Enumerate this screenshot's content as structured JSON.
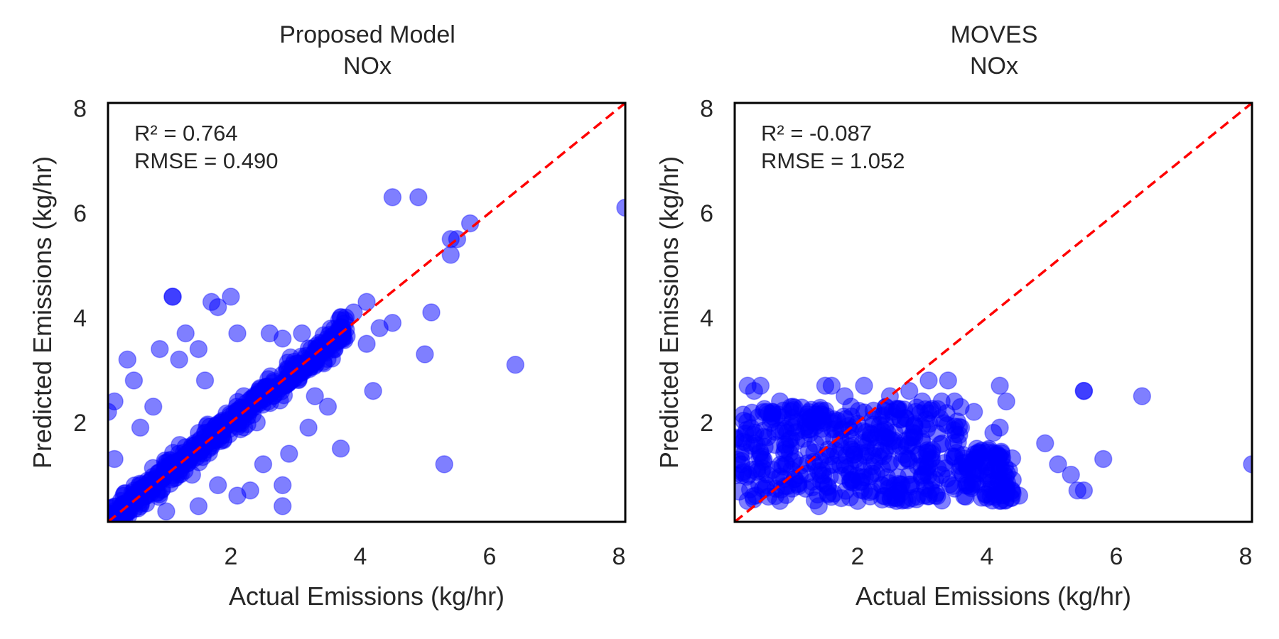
{
  "colors": {
    "points": "#0000ff",
    "diagonal": "#ff0000",
    "frame": "#000000"
  },
  "chart_data": [
    {
      "type": "scatter",
      "title_line1": "Proposed Model",
      "title_line2": "NOx",
      "xlabel": "Actual Emissions (kg/hr)",
      "ylabel": "Predicted Emissions (kg/hr)",
      "xlim": [
        0.1,
        8.1
      ],
      "ylim": [
        0.1,
        8.1
      ],
      "xticks": [
        2,
        4,
        6,
        8
      ],
      "yticks": [
        2,
        4,
        6,
        8
      ],
      "grid": false,
      "reference_line": "y = x",
      "annotation_r2": "R² = 0.764",
      "annotation_rmse": "RMSE = 0.490",
      "r2": 0.764,
      "rmse": 0.49,
      "cluster": {
        "x_range": [
          0.1,
          3.8
        ],
        "description": "dense band along y = x"
      },
      "points": [
        [
          0.2,
          2.4
        ],
        [
          0.1,
          2.2
        ],
        [
          0.4,
          3.2
        ],
        [
          0.5,
          2.8
        ],
        [
          0.9,
          3.4
        ],
        [
          1.1,
          4.4
        ],
        [
          1.1,
          4.4
        ],
        [
          1.3,
          3.7
        ],
        [
          1.5,
          3.4
        ],
        [
          1.6,
          2.8
        ],
        [
          1.7,
          4.3
        ],
        [
          1.8,
          4.2
        ],
        [
          2.0,
          4.4
        ],
        [
          2.1,
          3.7
        ],
        [
          2.6,
          3.7
        ],
        [
          2.8,
          3.6
        ],
        [
          3.1,
          3.7
        ],
        [
          3.4,
          3.5
        ],
        [
          3.7,
          4.0
        ],
        [
          3.9,
          4.1
        ],
        [
          4.1,
          4.3
        ],
        [
          4.3,
          3.8
        ],
        [
          4.5,
          3.9
        ],
        [
          4.1,
          3.5
        ],
        [
          4.5,
          6.3
        ],
        [
          4.9,
          6.3
        ],
        [
          5.4,
          5.5
        ],
        [
          5.5,
          5.5
        ],
        [
          5.4,
          5.2
        ],
        [
          5.7,
          5.8
        ],
        [
          8.1,
          6.1
        ],
        [
          5.1,
          4.1
        ],
        [
          5.0,
          3.3
        ],
        [
          6.4,
          3.1
        ],
        [
          5.3,
          1.2
        ],
        [
          4.2,
          2.6
        ],
        [
          3.7,
          1.5
        ],
        [
          2.8,
          0.4
        ],
        [
          2.8,
          0.8
        ],
        [
          2.3,
          0.7
        ],
        [
          2.1,
          0.6
        ],
        [
          1.8,
          0.8
        ],
        [
          1.5,
          0.4
        ],
        [
          1.0,
          0.3
        ],
        [
          0.6,
          0.4
        ],
        [
          3.2,
          1.9
        ],
        [
          3.5,
          2.3
        ],
        [
          3.3,
          2.5
        ],
        [
          1.2,
          3.2
        ],
        [
          0.8,
          2.3
        ],
        [
          0.6,
          1.9
        ],
        [
          2.5,
          1.2
        ],
        [
          2.9,
          1.4
        ],
        [
          1.4,
          1.0
        ],
        [
          3.0,
          2.9
        ],
        [
          2.2,
          2.5
        ],
        [
          1.6,
          1.8
        ],
        [
          2.4,
          2.0
        ],
        [
          0.3,
          0.5
        ],
        [
          0.2,
          1.3
        ]
      ]
    },
    {
      "type": "scatter",
      "title_line1": "MOVES",
      "title_line2": "NOx",
      "xlabel": "Actual Emissions (kg/hr)",
      "ylabel": "Predicted Emissions (kg/hr)",
      "xlim": [
        0.1,
        8.1
      ],
      "ylim": [
        0.1,
        8.1
      ],
      "xticks": [
        2,
        4,
        6,
        8
      ],
      "yticks": [
        2,
        4,
        6,
        8
      ],
      "grid": false,
      "reference_line": "y = x",
      "annotation_r2": "R² = -0.087",
      "annotation_rmse": "RMSE = 1.052",
      "r2": -0.087,
      "rmse": 1.052,
      "cluster": {
        "x_range": [
          0.1,
          4.4
        ],
        "y_range": [
          0.4,
          2.7
        ],
        "description": "flat band mostly between y 0.4 and 2.5"
      },
      "points": [
        [
          0.3,
          2.7
        ],
        [
          0.5,
          2.7
        ],
        [
          0.4,
          2.6
        ],
        [
          0.8,
          2.4
        ],
        [
          1.0,
          2.3
        ],
        [
          1.5,
          2.7
        ],
        [
          1.6,
          2.7
        ],
        [
          1.8,
          2.5
        ],
        [
          2.1,
          2.7
        ],
        [
          2.5,
          2.5
        ],
        [
          2.8,
          2.6
        ],
        [
          3.1,
          2.8
        ],
        [
          3.4,
          2.8
        ],
        [
          3.3,
          2.4
        ],
        [
          3.5,
          2.4
        ],
        [
          3.8,
          2.2
        ],
        [
          3.6,
          1.9
        ],
        [
          4.2,
          2.7
        ],
        [
          4.3,
          2.4
        ],
        [
          4.2,
          1.9
        ],
        [
          4.1,
          1.8
        ],
        [
          4.4,
          0.9
        ],
        [
          4.5,
          0.6
        ],
        [
          4.2,
          0.5
        ],
        [
          4.9,
          1.6
        ],
        [
          5.1,
          1.2
        ],
        [
          5.3,
          1.0
        ],
        [
          5.4,
          0.7
        ],
        [
          5.5,
          0.7
        ],
        [
          5.5,
          2.6
        ],
        [
          5.5,
          2.6
        ],
        [
          5.8,
          1.3
        ],
        [
          6.4,
          2.5
        ],
        [
          8.1,
          1.2
        ],
        [
          3.7,
          1.1
        ],
        [
          3.2,
          0.6
        ],
        [
          2.6,
          0.5
        ],
        [
          2.0,
          0.5
        ],
        [
          1.4,
          0.4
        ],
        [
          0.8,
          0.5
        ],
        [
          0.3,
          0.5
        ],
        [
          2.9,
          2.2
        ],
        [
          3.0,
          2.4
        ],
        [
          1.9,
          2.3
        ],
        [
          1.2,
          2.0
        ],
        [
          0.6,
          2.2
        ],
        [
          0.2,
          1.7
        ],
        [
          0.2,
          1.2
        ]
      ]
    }
  ]
}
